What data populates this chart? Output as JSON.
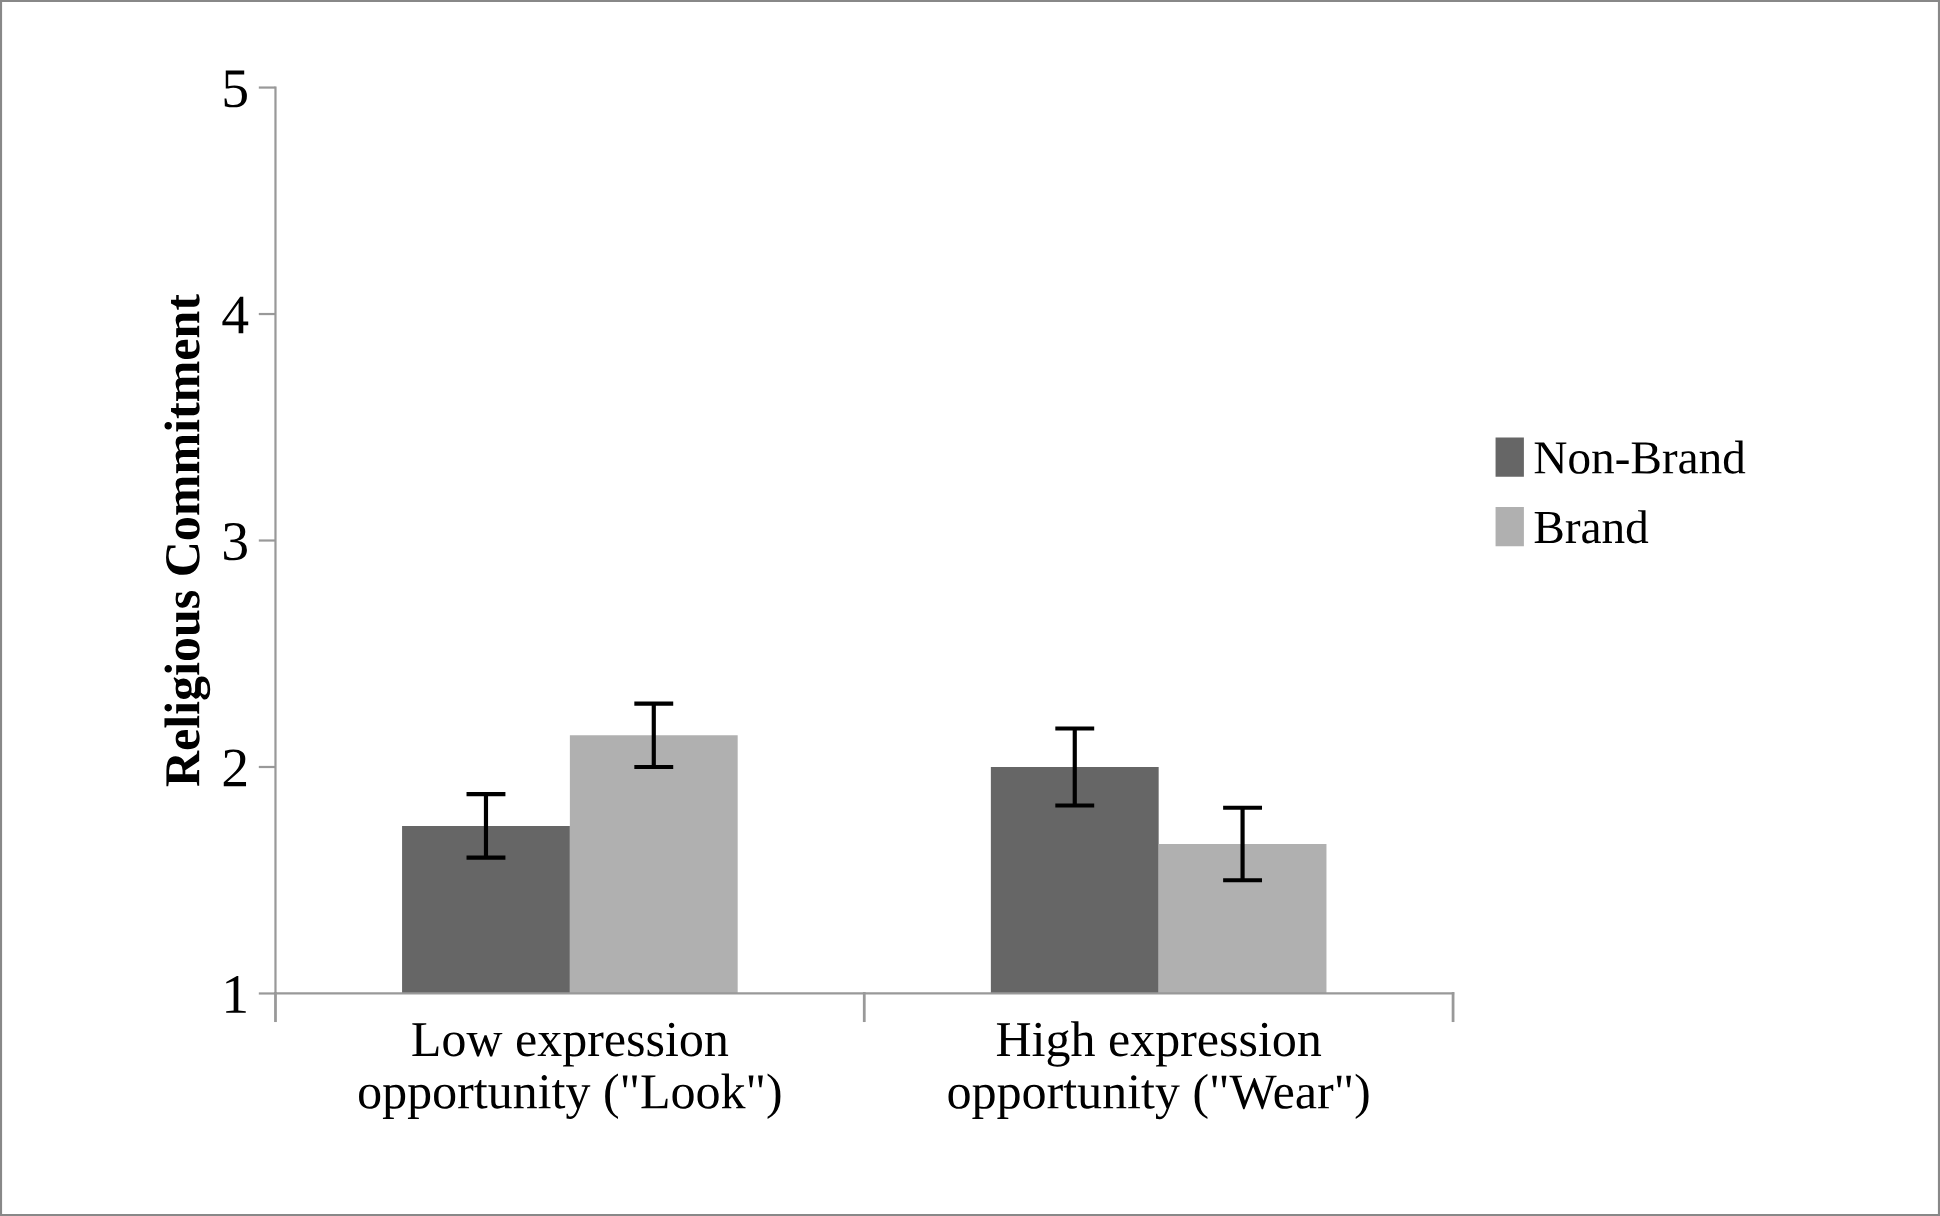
{
  "chart_data": {
    "type": "bar",
    "ylabel": "Religious Commitment",
    "categories": [
      "Low expression\nopportunity (\"Look\")",
      "High expression\nopportunity (\"Wear\")"
    ],
    "series": [
      {
        "name": "Non-Brand",
        "color": "#666666",
        "values": [
          1.74,
          2.0
        ],
        "errors": [
          0.14,
          0.17
        ]
      },
      {
        "name": "Brand",
        "color": "#b0b0b0",
        "values": [
          2.14,
          1.66
        ],
        "errors": [
          0.14,
          0.16
        ]
      }
    ],
    "ylim": [
      1,
      5
    ],
    "yticks": [
      1,
      2,
      3,
      4,
      5
    ],
    "grid": false,
    "legend": "right"
  }
}
